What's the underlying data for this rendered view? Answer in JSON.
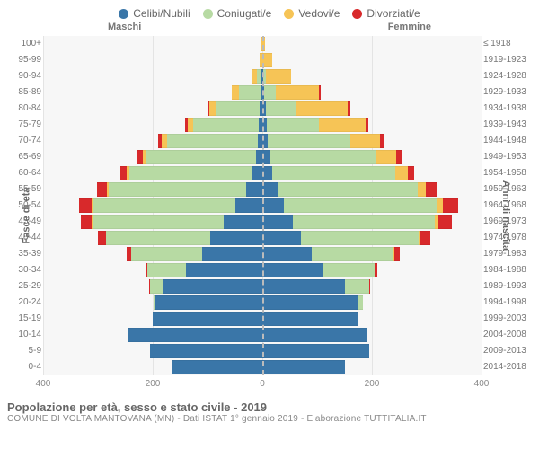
{
  "legend": {
    "items": [
      {
        "label": "Celibi/Nubili",
        "color": "#3a76a8"
      },
      {
        "label": "Coniugati/e",
        "color": "#b7daa3"
      },
      {
        "label": "Vedovi/e",
        "color": "#f6c456"
      },
      {
        "label": "Divorziati/e",
        "color": "#d8292b"
      }
    ]
  },
  "header": {
    "male": "Maschi",
    "female": "Femmine"
  },
  "axis_labels": {
    "left": "Fasce di età",
    "right": "Anni di nascita"
  },
  "colors": {
    "single": "#3a76a8",
    "married": "#b7daa3",
    "widowed": "#f6c456",
    "divorced": "#d8292b",
    "background": "#f7f7f7",
    "grid": "#e4e4e4",
    "center": "#bbbbbb"
  },
  "chart": {
    "xmax_each_side": 400,
    "xticks": [
      400,
      200,
      0,
      200,
      400
    ]
  },
  "rows": [
    {
      "age": "100+",
      "birth": "≤ 1918",
      "m": [
        0,
        0,
        2,
        0
      ],
      "f": [
        0,
        0,
        5,
        0
      ]
    },
    {
      "age": "95-99",
      "birth": "1919-1923",
      "m": [
        0,
        0,
        5,
        0
      ],
      "f": [
        0,
        0,
        18,
        0
      ]
    },
    {
      "age": "90-94",
      "birth": "1924-1928",
      "m": [
        2,
        8,
        10,
        0
      ],
      "f": [
        2,
        5,
        45,
        0
      ]
    },
    {
      "age": "85-89",
      "birth": "1929-1933",
      "m": [
        3,
        40,
        12,
        0
      ],
      "f": [
        4,
        20,
        80,
        2
      ]
    },
    {
      "age": "80-84",
      "birth": "1934-1938",
      "m": [
        5,
        80,
        12,
        3
      ],
      "f": [
        6,
        55,
        95,
        4
      ]
    },
    {
      "age": "75-79",
      "birth": "1939-1943",
      "m": [
        6,
        120,
        10,
        5
      ],
      "f": [
        8,
        95,
        85,
        6
      ]
    },
    {
      "age": "70-74",
      "birth": "1944-1948",
      "m": [
        8,
        165,
        10,
        8
      ],
      "f": [
        10,
        150,
        55,
        8
      ]
    },
    {
      "age": "65-69",
      "birth": "1949-1953",
      "m": [
        12,
        200,
        6,
        10
      ],
      "f": [
        14,
        195,
        35,
        10
      ]
    },
    {
      "age": "60-64",
      "birth": "1954-1958",
      "m": [
        18,
        225,
        4,
        12
      ],
      "f": [
        18,
        225,
        22,
        12
      ]
    },
    {
      "age": "55-59",
      "birth": "1959-1963",
      "m": [
        30,
        250,
        3,
        18
      ],
      "f": [
        28,
        255,
        15,
        20
      ]
    },
    {
      "age": "50-54",
      "birth": "1964-1968",
      "m": [
        50,
        260,
        2,
        22
      ],
      "f": [
        40,
        280,
        10,
        28
      ]
    },
    {
      "age": "45-49",
      "birth": "1969-1973",
      "m": [
        70,
        240,
        1,
        20
      ],
      "f": [
        55,
        260,
        6,
        25
      ]
    },
    {
      "age": "40-44",
      "birth": "1974-1978",
      "m": [
        95,
        190,
        0,
        15
      ],
      "f": [
        70,
        215,
        3,
        18
      ]
    },
    {
      "age": "35-39",
      "birth": "1979-1983",
      "m": [
        110,
        130,
        0,
        8
      ],
      "f": [
        90,
        150,
        1,
        10
      ]
    },
    {
      "age": "30-34",
      "birth": "1984-1988",
      "m": [
        140,
        70,
        0,
        3
      ],
      "f": [
        110,
        95,
        0,
        5
      ]
    },
    {
      "age": "25-29",
      "birth": "1989-1993",
      "m": [
        180,
        25,
        0,
        1
      ],
      "f": [
        150,
        45,
        0,
        2
      ]
    },
    {
      "age": "20-24",
      "birth": "1994-1998",
      "m": [
        195,
        3,
        0,
        0
      ],
      "f": [
        175,
        8,
        0,
        0
      ]
    },
    {
      "age": "15-19",
      "birth": "1999-2003",
      "m": [
        200,
        0,
        0,
        0
      ],
      "f": [
        175,
        0,
        0,
        0
      ]
    },
    {
      "age": "10-14",
      "birth": "2004-2008",
      "m": [
        245,
        0,
        0,
        0
      ],
      "f": [
        190,
        0,
        0,
        0
      ]
    },
    {
      "age": "5-9",
      "birth": "2009-2013",
      "m": [
        205,
        0,
        0,
        0
      ],
      "f": [
        195,
        0,
        0,
        0
      ]
    },
    {
      "age": "0-4",
      "birth": "2014-2018",
      "m": [
        165,
        0,
        0,
        0
      ],
      "f": [
        150,
        0,
        0,
        0
      ]
    }
  ],
  "footer": {
    "title": "Popolazione per età, sesso e stato civile - 2019",
    "subtitle": "COMUNE DI VOLTA MANTOVANA (MN) - Dati ISTAT 1° gennaio 2019 - Elaborazione TUTTITALIA.IT"
  }
}
